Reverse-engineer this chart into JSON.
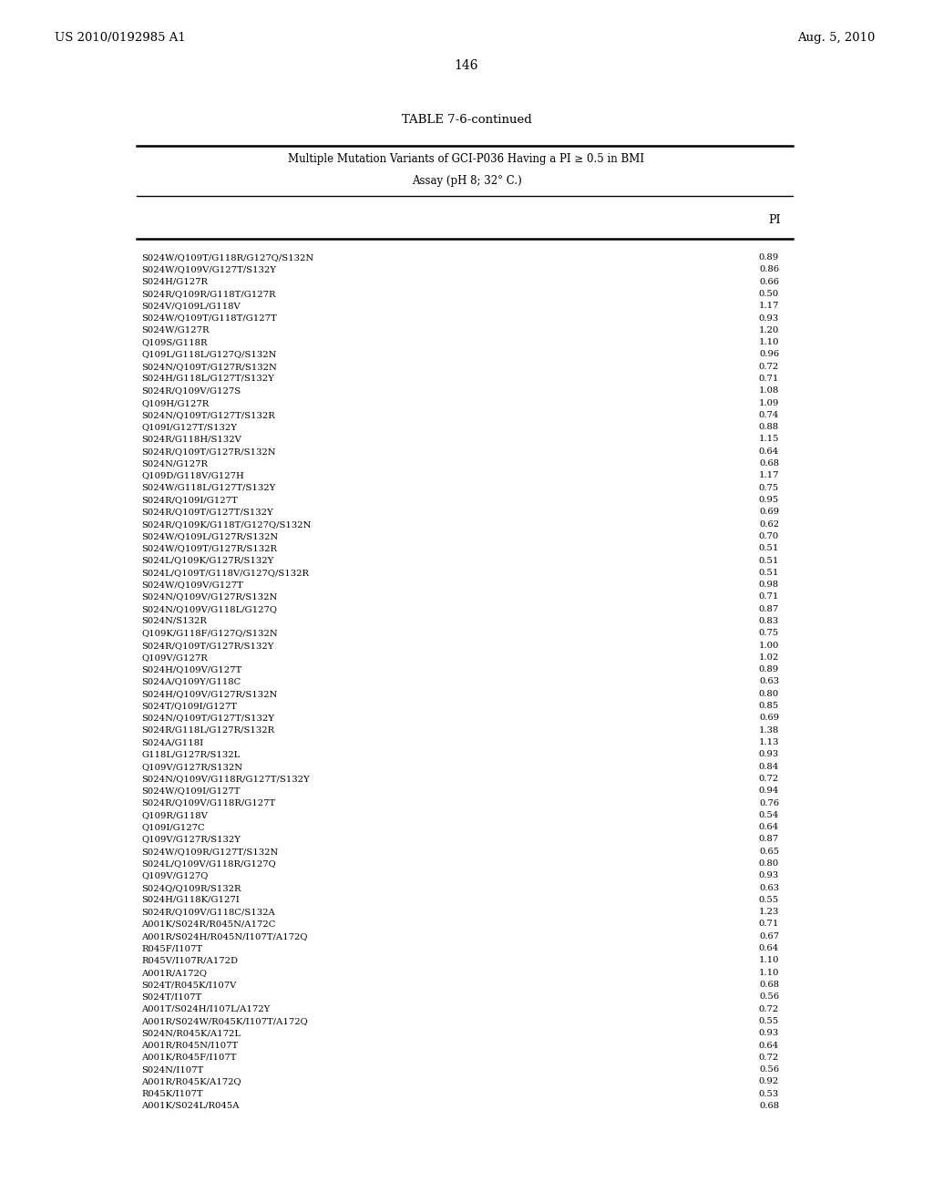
{
  "header_left": "US 2010/0192985 A1",
  "header_right": "Aug. 5, 2010",
  "page_number": "146",
  "table_title": "TABLE 7-6-continued",
  "table_subtitle1": "Multiple Mutation Variants of GCI-P036 Having a PI ≥ 0.5 in BMI",
  "table_subtitle2": "Assay (pH 8; 32° C.)",
  "col_header": "PI",
  "rows": [
    [
      "S024W/Q109T/G118R/G127Q/S132N",
      "0.89"
    ],
    [
      "S024W/Q109V/G127T/S132Y",
      "0.86"
    ],
    [
      "S024H/G127R",
      "0.66"
    ],
    [
      "S024R/Q109R/G118T/G127R",
      "0.50"
    ],
    [
      "S024V/Q109L/G118V",
      "1.17"
    ],
    [
      "S024W/Q109T/G118T/G127T",
      "0.93"
    ],
    [
      "S024W/G127R",
      "1.20"
    ],
    [
      "Q109S/G118R",
      "1.10"
    ],
    [
      "Q109L/G118L/G127Q/S132N",
      "0.96"
    ],
    [
      "S024N/Q109T/G127R/S132N",
      "0.72"
    ],
    [
      "S024H/G118L/G127T/S132Y",
      "0.71"
    ],
    [
      "S024R/Q109V/G127S",
      "1.08"
    ],
    [
      "Q109H/G127R",
      "1.09"
    ],
    [
      "S024N/Q109T/G127T/S132R",
      "0.74"
    ],
    [
      "Q109I/G127T/S132Y",
      "0.88"
    ],
    [
      "S024R/G118H/S132V",
      "1.15"
    ],
    [
      "S024R/Q109T/G127R/S132N",
      "0.64"
    ],
    [
      "S024N/G127R",
      "0.68"
    ],
    [
      "Q109D/G118V/G127H",
      "1.17"
    ],
    [
      "S024W/G118L/G127T/S132Y",
      "0.75"
    ],
    [
      "S024R/Q109I/G127T",
      "0.95"
    ],
    [
      "S024R/Q109T/G127T/S132Y",
      "0.69"
    ],
    [
      "S024R/Q109K/G118T/G127Q/S132N",
      "0.62"
    ],
    [
      "S024W/Q109L/G127R/S132N",
      "0.70"
    ],
    [
      "S024W/Q109T/G127R/S132R",
      "0.51"
    ],
    [
      "S024L/Q109K/G127R/S132Y",
      "0.51"
    ],
    [
      "S024L/Q109T/G118V/G127Q/S132R",
      "0.51"
    ],
    [
      "S024W/Q109V/G127T",
      "0.98"
    ],
    [
      "S024N/Q109V/G127R/S132N",
      "0.71"
    ],
    [
      "S024N/Q109V/G118L/G127Q",
      "0.87"
    ],
    [
      "S024N/S132R",
      "0.83"
    ],
    [
      "Q109K/G118F/G127Q/S132N",
      "0.75"
    ],
    [
      "S024R/Q109T/G127R/S132Y",
      "1.00"
    ],
    [
      "Q109V/G127R",
      "1.02"
    ],
    [
      "S024H/Q109V/G127T",
      "0.89"
    ],
    [
      "S024A/Q109Y/G118C",
      "0.63"
    ],
    [
      "S024H/Q109V/G127R/S132N",
      "0.80"
    ],
    [
      "S024T/Q109I/G127T",
      "0.85"
    ],
    [
      "S024N/Q109T/G127T/S132Y",
      "0.69"
    ],
    [
      "S024R/G118L/G127R/S132R",
      "1.38"
    ],
    [
      "S024A/G118I",
      "1.13"
    ],
    [
      "G118L/G127R/S132L",
      "0.93"
    ],
    [
      "Q109V/G127R/S132N",
      "0.84"
    ],
    [
      "S024N/Q109V/G118R/G127T/S132Y",
      "0.72"
    ],
    [
      "S024W/Q109I/G127T",
      "0.94"
    ],
    [
      "S024R/Q109V/G118R/G127T",
      "0.76"
    ],
    [
      "Q109R/G118V",
      "0.54"
    ],
    [
      "Q109I/G127C",
      "0.64"
    ],
    [
      "Q109V/G127R/S132Y",
      "0.87"
    ],
    [
      "S024W/Q109R/G127T/S132N",
      "0.65"
    ],
    [
      "S024L/Q109V/G118R/G127Q",
      "0.80"
    ],
    [
      "Q109V/G127Q",
      "0.93"
    ],
    [
      "S024Q/Q109R/S132R",
      "0.63"
    ],
    [
      "S024H/G118K/G127I",
      "0.55"
    ],
    [
      "S024R/Q109V/G118C/S132A",
      "1.23"
    ],
    [
      "A001K/S024R/R045N/A172C",
      "0.71"
    ],
    [
      "A001R/S024H/R045N/I107T/A172Q",
      "0.67"
    ],
    [
      "R045F/I107T",
      "0.64"
    ],
    [
      "R045V/I107R/A172D",
      "1.10"
    ],
    [
      "A001R/A172Q",
      "1.10"
    ],
    [
      "S024T/R045K/I107V",
      "0.68"
    ],
    [
      "S024T/I107T",
      "0.56"
    ],
    [
      "A001T/S024H/I107L/A172Y",
      "0.72"
    ],
    [
      "A001R/S024W/R045K/I107T/A172Q",
      "0.55"
    ],
    [
      "S024N/R045K/A172L",
      "0.93"
    ],
    [
      "A001R/R045N/I107T",
      "0.64"
    ],
    [
      "A001K/R045F/I107T",
      "0.72"
    ],
    [
      "S024N/I107T",
      "0.56"
    ],
    [
      "A001R/R045K/A172Q",
      "0.92"
    ],
    [
      "R045K/I107T",
      "0.53"
    ],
    [
      "A001K/S024L/R045A",
      "0.68"
    ]
  ]
}
